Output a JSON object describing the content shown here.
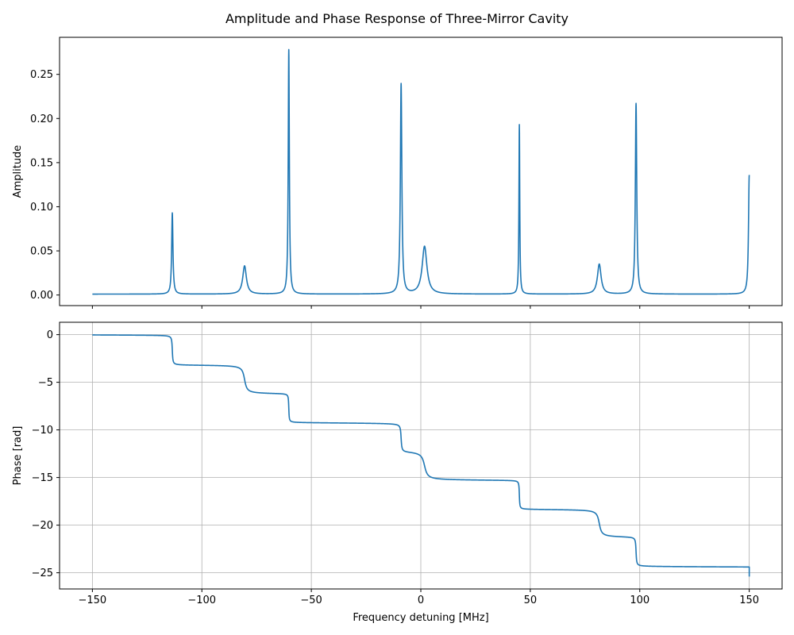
{
  "chart_data": [
    {
      "type": "line",
      "title": "Amplitude and Phase Response of Three-Mirror Cavity",
      "xlabel": "",
      "ylabel": "Amplitude",
      "xlim": [
        -165,
        165
      ],
      "ylim": [
        -0.012,
        0.292
      ],
      "grid": false,
      "xticks": [
        -150,
        -100,
        -50,
        0,
        50,
        100,
        150
      ],
      "xtick_labels_visible": false,
      "yticks": [
        0.0,
        0.05,
        0.1,
        0.15,
        0.2,
        0.25
      ],
      "ytick_labels": [
        "0.00",
        "0.05",
        "0.10",
        "0.15",
        "0.20",
        "0.25"
      ],
      "series": [
        {
          "color": "#1f77b4",
          "peaks": [
            {
              "x": -113.5,
              "y": 0.092,
              "width": 0.35
            },
            {
              "x": -80.5,
              "y": 0.032,
              "width": 1.0
            },
            {
              "x": -60.3,
              "y": 0.277,
              "width": 0.3
            },
            {
              "x": -9.0,
              "y": 0.238,
              "width": 0.4
            },
            {
              "x": 1.7,
              "y": 0.054,
              "width": 1.3
            },
            {
              "x": 45.0,
              "y": 0.192,
              "width": 0.22
            },
            {
              "x": 81.5,
              "y": 0.034,
              "width": 1.0
            },
            {
              "x": 98.3,
              "y": 0.216,
              "width": 0.38
            },
            {
              "x": 150.0,
              "y": 0.135,
              "width": 0.4
            }
          ],
          "baseline": 0.001,
          "x_start": -150,
          "x_end": 150
        }
      ]
    },
    {
      "type": "line",
      "xlabel": "Frequency detuning [MHz]",
      "ylabel": "Phase [rad]",
      "xlim": [
        -165,
        165
      ],
      "ylim": [
        -26.7,
        1.3
      ],
      "grid": true,
      "xticks": [
        -150,
        -100,
        -50,
        0,
        50,
        100,
        150
      ],
      "xtick_labels": [
        "−150",
        "−100",
        "−50",
        "0",
        "50",
        "100",
        "150"
      ],
      "yticks": [
        0,
        -5,
        -10,
        -15,
        -20,
        -25
      ],
      "ytick_labels": [
        "0",
        "−5",
        "−10",
        "−15",
        "−20",
        "−25"
      ],
      "series": [
        {
          "color": "#1f77b4",
          "start_value": 0.0,
          "steps": [
            {
              "x": -113.5,
              "drop": 3.14,
              "width": 0.2
            },
            {
              "x": -80.5,
              "drop": 3.0,
              "width": 0.8
            },
            {
              "x": -60.3,
              "drop": 3.05,
              "width": 0.15
            },
            {
              "x": -9.0,
              "drop": 3.0,
              "width": 0.25
            },
            {
              "x": 1.7,
              "drop": 3.0,
              "width": 1.0
            },
            {
              "x": 45.0,
              "drop": 3.05,
              "width": 0.15
            },
            {
              "x": 81.5,
              "drop": 2.9,
              "width": 0.8
            },
            {
              "x": 98.3,
              "drop": 3.1,
              "width": 0.2
            }
          ],
          "end_value": -25.4,
          "x_start": -150,
          "x_end": 150
        }
      ]
    }
  ]
}
